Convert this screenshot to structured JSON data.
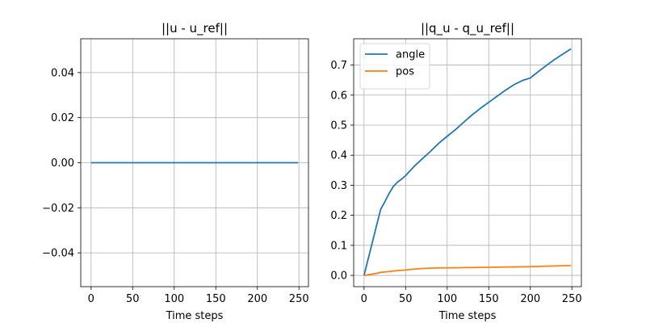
{
  "chart_data": [
    {
      "type": "line",
      "title": "||u - u_ref||",
      "xlabel": "Time steps",
      "ylabel": "",
      "xlim": [
        -12.45,
        261.45
      ],
      "ylim": [
        -0.055,
        0.055
      ],
      "xticks": [
        0,
        50,
        100,
        150,
        200,
        250
      ],
      "yticks": [
        -0.04,
        -0.02,
        0.0,
        0.02,
        0.04
      ],
      "ytick_labels": [
        "−0.04",
        "−0.02",
        "0.00",
        "0.02",
        "0.04"
      ],
      "grid": true,
      "legend": null,
      "series": [
        {
          "color": "#1f77b4",
          "x": [
            0,
            249
          ],
          "y": [
            0.0,
            0.0
          ]
        }
      ]
    },
    {
      "type": "line",
      "title": "||q_u - q_u_ref||",
      "xlabel": "Time steps",
      "ylabel": "",
      "xlim": [
        -12.45,
        261.45
      ],
      "ylim": [
        -0.0375,
        0.7875
      ],
      "xticks": [
        0,
        50,
        100,
        150,
        200,
        250
      ],
      "yticks": [
        0.0,
        0.1,
        0.2,
        0.3,
        0.4,
        0.5,
        0.6,
        0.7
      ],
      "ytick_labels": [
        "0.0",
        "0.1",
        "0.2",
        "0.3",
        "0.4",
        "0.5",
        "0.6",
        "0.7"
      ],
      "grid": true,
      "legend": "top-left",
      "series": [
        {
          "name": "angle",
          "color": "#1f77b4",
          "x": [
            0,
            10,
            20,
            25,
            30,
            35,
            40,
            45,
            50,
            55,
            60,
            70,
            80,
            90,
            100,
            110,
            120,
            130,
            140,
            150,
            160,
            170,
            180,
            190,
            200,
            210,
            220,
            230,
            240,
            249
          ],
          "y": [
            0.0,
            0.11,
            0.22,
            0.245,
            0.272,
            0.295,
            0.31,
            0.32,
            0.332,
            0.347,
            0.362,
            0.388,
            0.413,
            0.44,
            0.463,
            0.485,
            0.51,
            0.534,
            0.556,
            0.576,
            0.596,
            0.616,
            0.634,
            0.648,
            0.657,
            0.679,
            0.7,
            0.72,
            0.738,
            0.754
          ]
        },
        {
          "name": "pos",
          "color": "#ff7f0e",
          "x": [
            0,
            10,
            20,
            30,
            40,
            50,
            60,
            70,
            80,
            90,
            100,
            125,
            150,
            175,
            200,
            225,
            249
          ],
          "y": [
            0.0,
            0.004,
            0.01,
            0.013,
            0.016,
            0.018,
            0.021,
            0.023,
            0.024,
            0.025,
            0.025,
            0.026,
            0.027,
            0.028,
            0.029,
            0.031,
            0.033
          ]
        }
      ]
    }
  ]
}
